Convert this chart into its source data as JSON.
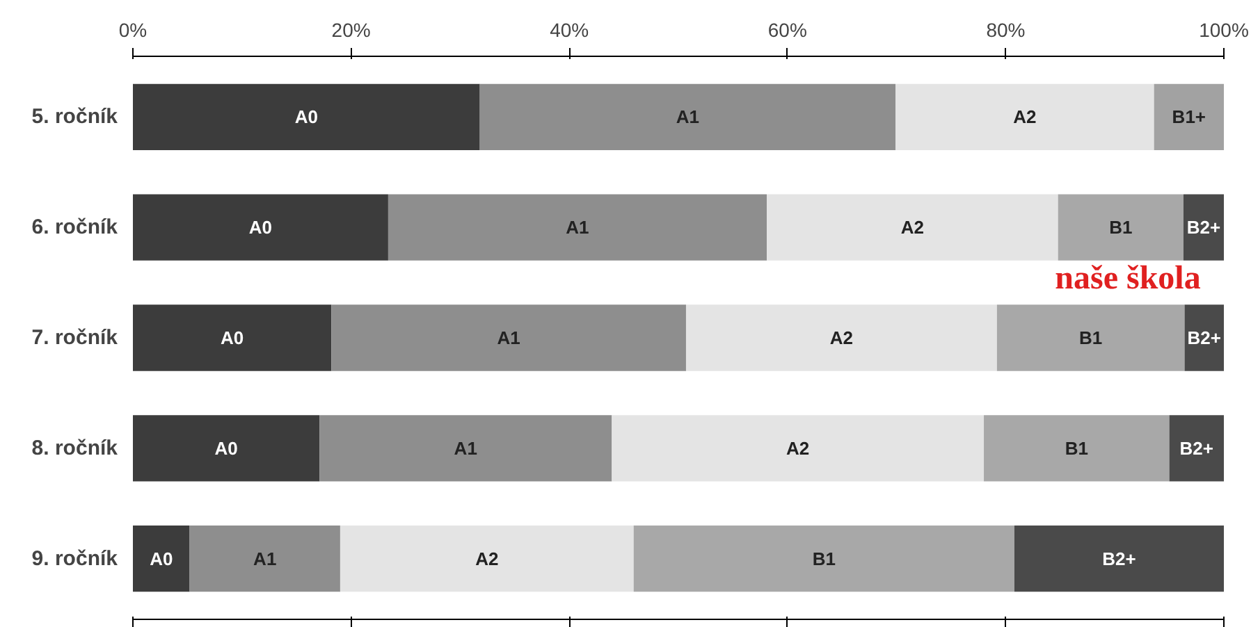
{
  "chart_data": {
    "type": "bar",
    "orientation": "horizontal",
    "stacked": true,
    "categories": [
      "5. ročník",
      "6. ročník",
      "7. ročník",
      "8. ročník",
      "9. ročník"
    ],
    "series": [
      {
        "name": "A0",
        "color": "#3c3c3c",
        "values": [
          31.8,
          23.4,
          18.2,
          17.1,
          5.2
        ]
      },
      {
        "name": "A1",
        "color": "#8e8e8e",
        "values": [
          38.1,
          34.7,
          32.5,
          26.8,
          13.8
        ]
      },
      {
        "name": "A2",
        "color": "#e4e4e4",
        "values": [
          23.7,
          26.7,
          28.5,
          34.1,
          26.9
        ]
      },
      {
        "name": "B1+",
        "color": "#a2a2a2",
        "values": [
          6.4,
          null,
          null,
          null,
          null
        ]
      },
      {
        "name": "B1",
        "color": "#a8a8a8",
        "values": [
          null,
          11.5,
          17.2,
          17.0,
          34.9
        ]
      },
      {
        "name": "B2+",
        "color": "#4a4a4a",
        "values": [
          null,
          3.7,
          3.6,
          5.0,
          19.2
        ]
      }
    ],
    "xlim": [
      0,
      100
    ],
    "xticks": [
      {
        "value": 0,
        "label": "0%"
      },
      {
        "value": 20,
        "label": "20%"
      },
      {
        "value": 40,
        "label": "40%"
      },
      {
        "value": 60,
        "label": "60%"
      },
      {
        "value": 80,
        "label": "80%"
      },
      {
        "value": 100,
        "label": "100%"
      }
    ],
    "annotations": [
      "naše škola"
    ],
    "grid": false,
    "legend": false
  }
}
